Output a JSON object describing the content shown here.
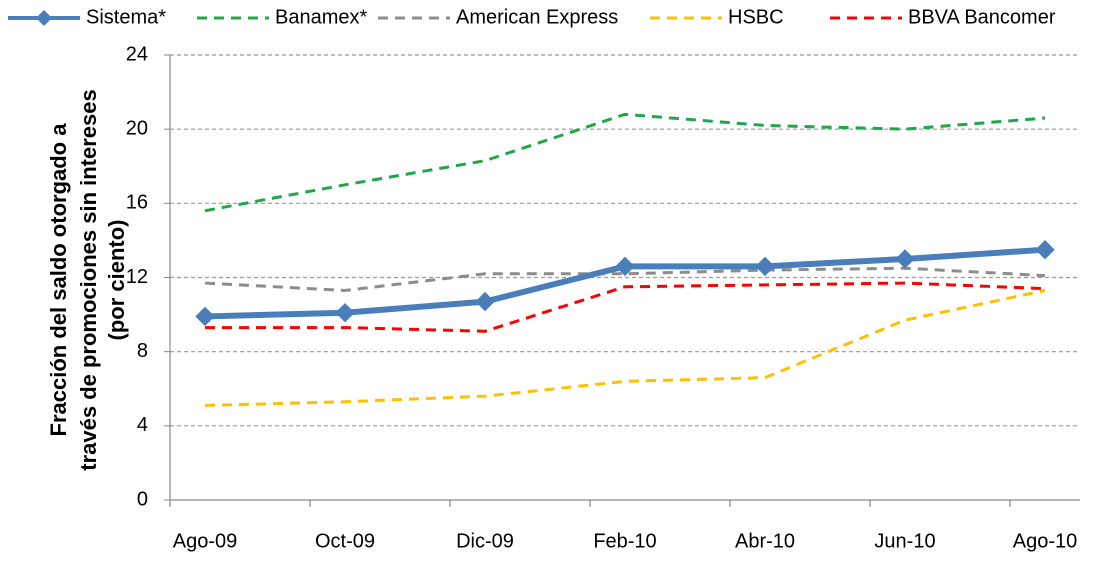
{
  "chart_data": {
    "type": "line",
    "ylabel": [
      "Fracción del saldo otorgado a",
      "través de promociones sin intereses",
      "(por ciento)"
    ],
    "categories": [
      "Ago-09",
      "Oct-09",
      "Dic-09",
      "Feb-10",
      "Abr-10",
      "Jun-10",
      "Ago-10"
    ],
    "series": [
      {
        "name": "Sistema*",
        "color": "#4a7ebb",
        "style": "solid",
        "marker": "diamond",
        "values": [
          9.9,
          10.1,
          10.7,
          12.6,
          12.6,
          13.0,
          13.5
        ]
      },
      {
        "name": "Banamex*",
        "color": "#1fa84a",
        "style": "dashed",
        "values": [
          15.6,
          17.0,
          18.3,
          20.8,
          20.2,
          20.0,
          20.6
        ]
      },
      {
        "name": "American Express",
        "color": "#8c8c8c",
        "style": "dashed",
        "values": [
          11.7,
          11.3,
          12.2,
          12.2,
          12.4,
          12.5,
          12.1
        ]
      },
      {
        "name": "HSBC",
        "color": "#ffc000",
        "style": "dashed",
        "values": [
          5.1,
          5.3,
          5.6,
          6.4,
          6.6,
          9.7,
          11.3
        ]
      },
      {
        "name": "BBVA Bancomer",
        "color": "#ff0000",
        "style": "dashed",
        "values": [
          9.3,
          9.3,
          9.1,
          11.5,
          11.6,
          11.7,
          11.4
        ]
      }
    ],
    "ylim": [
      0,
      24
    ],
    "yticks": [
      0,
      4,
      8,
      12,
      16,
      20,
      24
    ],
    "grid": true,
    "legend": "top"
  }
}
